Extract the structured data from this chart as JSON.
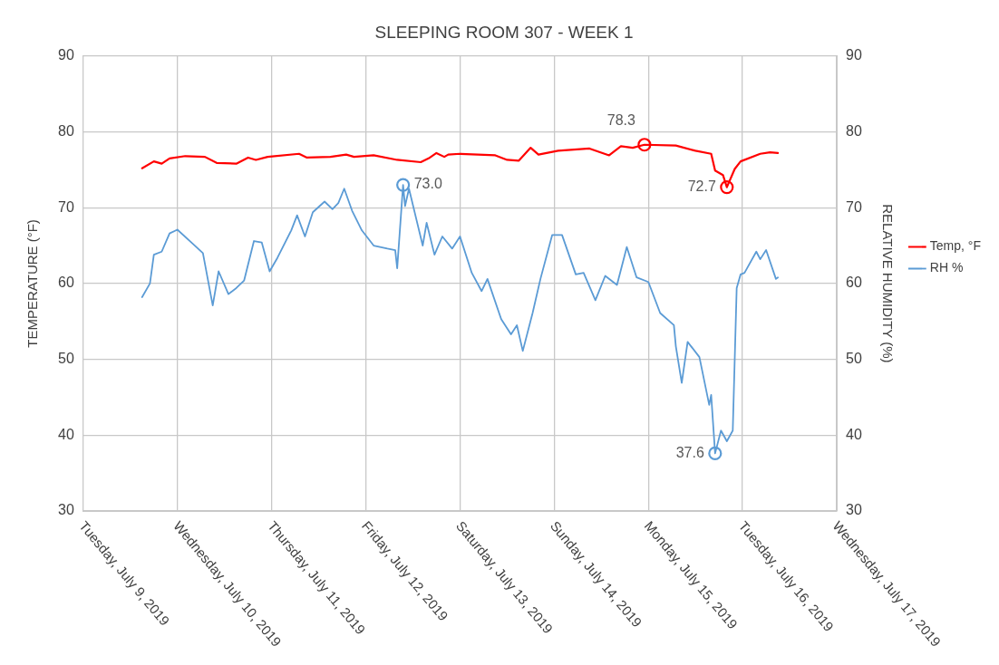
{
  "chart_data": {
    "type": "line",
    "title": "SLEEPING ROOM 307 - WEEK 1",
    "ylabel": "TEMPERATURE (°F)",
    "y2label": "RELATIVE HUMIDITY (%)",
    "xlim": [
      "2019-07-09",
      "2019-07-17"
    ],
    "xticks": [
      {
        "value": "2019-07-09",
        "label": "Tuesday, July 9, 2019"
      },
      {
        "value": "2019-07-10",
        "label": "Wednesday, July 10, 2019"
      },
      {
        "value": "2019-07-11",
        "label": "Thursday, July 11, 2019"
      },
      {
        "value": "2019-07-12",
        "label": "Friday, July 12, 2019"
      },
      {
        "value": "2019-07-13",
        "label": "Saturday, July 13, 2019"
      },
      {
        "value": "2019-07-14",
        "label": "Sunday, July 14, 2019"
      },
      {
        "value": "2019-07-15",
        "label": "Monday, July 15, 2019"
      },
      {
        "value": "2019-07-16",
        "label": "Tuesday, July 16, 2019"
      },
      {
        "value": "2019-07-17",
        "label": "Wednesday, July 17, 2019"
      }
    ],
    "ylim": [
      30,
      90
    ],
    "yticks": [
      30,
      40,
      50,
      60,
      70,
      80,
      90
    ],
    "y2lim": [
      30,
      90
    ],
    "y2ticks": [
      30,
      40,
      50,
      60,
      70,
      80,
      90
    ],
    "grid": true,
    "legend": "right",
    "marker": "none",
    "line_style": "solid",
    "series": [
      {
        "name": "Temp, °F",
        "color": "#ff0000",
        "x": [
          "2019-07-09T15:00",
          "2019-07-09T18:00",
          "2019-07-09T20:00",
          "2019-07-09T22:00",
          "2019-07-10T02:00",
          "2019-07-10T07:00",
          "2019-07-10T10:00",
          "2019-07-10T15:00",
          "2019-07-10T18:00",
          "2019-07-10T20:00",
          "2019-07-10T23:00",
          "2019-07-11T07:00",
          "2019-07-11T09:00",
          "2019-07-11T15:00",
          "2019-07-11T19:00",
          "2019-07-11T21:00",
          "2019-07-12T02:00",
          "2019-07-12T08:00",
          "2019-07-12T14:00",
          "2019-07-12T16:00",
          "2019-07-12T18:00",
          "2019-07-12T20:00",
          "2019-07-12T21:00",
          "2019-07-13T00:00",
          "2019-07-13T09:00",
          "2019-07-13T12:00",
          "2019-07-13T15:00",
          "2019-07-13T18:00",
          "2019-07-13T20:00",
          "2019-07-14T01:00",
          "2019-07-14T09:00",
          "2019-07-14T14:00",
          "2019-07-14T17:00",
          "2019-07-14T20:00",
          "2019-07-14T23:00",
          "2019-07-15T07:00",
          "2019-07-15T12:00",
          "2019-07-15T16:00",
          "2019-07-15T17:00",
          "2019-07-15T19:00",
          "2019-07-15T20:00",
          "2019-07-15T22:00",
          "2019-07-15T23:30",
          "2019-07-16T04:30",
          "2019-07-16T07:00",
          "2019-07-16T09:00"
        ],
        "values": [
          75.2,
          76.1,
          75.8,
          76.5,
          76.8,
          76.7,
          75.9,
          75.8,
          76.6,
          76.3,
          76.7,
          77.1,
          76.6,
          76.7,
          77.0,
          76.7,
          76.9,
          76.3,
          76.0,
          76.5,
          77.2,
          76.7,
          77.0,
          77.1,
          76.9,
          76.3,
          76.2,
          77.9,
          77.0,
          77.5,
          77.8,
          76.9,
          78.1,
          77.9,
          78.3,
          78.2,
          77.5,
          77.1,
          74.9,
          74.3,
          72.7,
          75.1,
          76.1,
          77.1,
          77.3,
          77.2
        ]
      },
      {
        "name": "RH %",
        "color": "#5b9bd5",
        "axis": "y2",
        "x": [
          "2019-07-09T15:00",
          "2019-07-09T17:00",
          "2019-07-09T18:00",
          "2019-07-09T20:00",
          "2019-07-09T22:00",
          "2019-07-10T00:00",
          "2019-07-10T04:00",
          "2019-07-10T06:30",
          "2019-07-10T09:00",
          "2019-07-10T10:30",
          "2019-07-10T13:00",
          "2019-07-10T15:00",
          "2019-07-10T17:00",
          "2019-07-10T19:30",
          "2019-07-10T21:30",
          "2019-07-10T23:30",
          "2019-07-11T01:30",
          "2019-07-11T05:00",
          "2019-07-11T06:30",
          "2019-07-11T08:30",
          "2019-07-11T10:30",
          "2019-07-11T13:30",
          "2019-07-11T15:30",
          "2019-07-11T17:00",
          "2019-07-11T18:30",
          "2019-07-11T20:30",
          "2019-07-11T23:00",
          "2019-07-12T02:00",
          "2019-07-12T05:30",
          "2019-07-12T07:30",
          "2019-07-12T08:00",
          "2019-07-12T09:30",
          "2019-07-12T10:00",
          "2019-07-12T11:00",
          "2019-07-12T14:30",
          "2019-07-12T15:30",
          "2019-07-12T17:30",
          "2019-07-12T19:30",
          "2019-07-12T22:00",
          "2019-07-13T00:00",
          "2019-07-13T03:00",
          "2019-07-13T05:30",
          "2019-07-13T07:00",
          "2019-07-13T10:30",
          "2019-07-13T13:00",
          "2019-07-13T14:30",
          "2019-07-13T16:00",
          "2019-07-13T18:30",
          "2019-07-13T20:30",
          "2019-07-13T23:30",
          "2019-07-14T02:00",
          "2019-07-14T05:30",
          "2019-07-14T07:30",
          "2019-07-14T10:30",
          "2019-07-14T13:00",
          "2019-07-14T16:00",
          "2019-07-14T18:30",
          "2019-07-14T21:00",
          "2019-07-15T00:00",
          "2019-07-15T03:00",
          "2019-07-15T06:30",
          "2019-07-15T07:00",
          "2019-07-15T08:30",
          "2019-07-15T10:00",
          "2019-07-15T13:00",
          "2019-07-15T15:30",
          "2019-07-15T16:00",
          "2019-07-15T17:00",
          "2019-07-15T18:30",
          "2019-07-15T20:00",
          "2019-07-15T21:30",
          "2019-07-15T22:30",
          "2019-07-15T23:30",
          "2019-07-16T00:30",
          "2019-07-16T03:30",
          "2019-07-16T04:30",
          "2019-07-16T06:00",
          "2019-07-16T08:30",
          "2019-07-16T09:00"
        ],
        "values": [
          58.2,
          60.0,
          63.8,
          64.2,
          66.6,
          67.1,
          65.2,
          64.0,
          57.1,
          61.6,
          58.6,
          59.4,
          60.4,
          65.6,
          65.4,
          61.6,
          63.4,
          67.0,
          69.0,
          66.2,
          69.4,
          70.8,
          69.8,
          70.6,
          72.5,
          69.6,
          67.0,
          65.0,
          64.6,
          64.4,
          62.0,
          73.0,
          70.2,
          72.5,
          65.0,
          68.0,
          63.8,
          66.2,
          64.6,
          66.2,
          61.4,
          59.0,
          60.6,
          55.3,
          53.3,
          54.5,
          51.1,
          56.1,
          60.6,
          66.4,
          66.4,
          61.2,
          61.4,
          57.8,
          61.0,
          59.8,
          64.8,
          60.8,
          60.2,
          56.1,
          54.5,
          51.7,
          46.9,
          52.3,
          50.3,
          44.0,
          45.3,
          37.6,
          40.6,
          39.2,
          40.6,
          59.4,
          61.2,
          61.4,
          64.2,
          63.2,
          64.4,
          60.6,
          60.8
        ]
      }
    ],
    "annotations": [
      {
        "text": "73.0",
        "x": "2019-07-12T09:30",
        "y": 73.0
      },
      {
        "text": "78.3",
        "x": "2019-07-14T23:00",
        "y": 78.3
      },
      {
        "text": "72.7",
        "x": "2019-07-15T20:00",
        "y": 72.7
      },
      {
        "text": "37.6",
        "x": "2019-07-15T17:00",
        "y": 37.6
      }
    ]
  }
}
